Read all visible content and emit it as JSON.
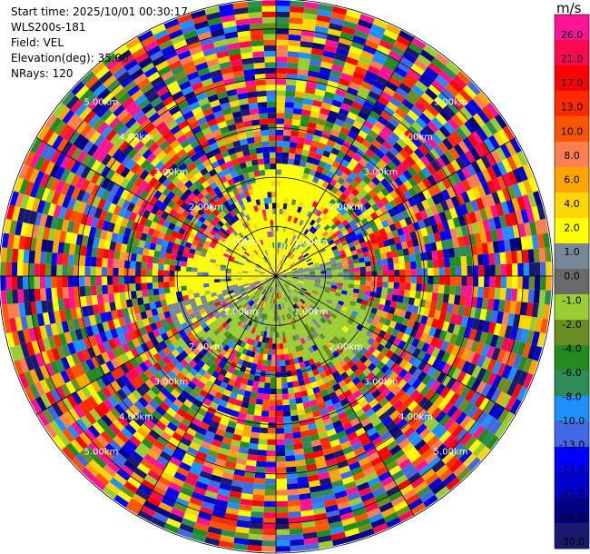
{
  "header": {
    "start_time_label": "Start time:",
    "start_time": "2025/10/01 00:30:17",
    "instrument": "WLS200s-181",
    "field_label": "Field:",
    "field": "VEL",
    "elevation_label": "Elevation(deg):",
    "elevation": "35.00",
    "nrays_label": "NRays:",
    "nrays": "120"
  },
  "colorbar": {
    "unit": "m/s",
    "ticks": [
      "26.0",
      "21.0",
      "17.0",
      "13.0",
      "10.0",
      "8.0",
      "6.0",
      "4.0",
      "2.0",
      "1.0",
      "0.0",
      "-1.0",
      "-2.0",
      "-4.0",
      "-6.0",
      "-8.0",
      "-10.0",
      "-13.0",
      "-17.0",
      "-21.0",
      "-26.0",
      "-30.0"
    ],
    "colors": [
      "#ff1493",
      "#ff0a50",
      "#ff0000",
      "#ff2a00",
      "#ff5500",
      "#ff7f50",
      "#ffa500",
      "#ffd700",
      "#ffff00",
      "#778899",
      "#696969",
      "#9acd32",
      "#6b8e23",
      "#228b22",
      "#2e8b57",
      "#1e90ff",
      "#4169e1",
      "#0000ff",
      "#0000cd",
      "#000080",
      "#191970"
    ]
  },
  "chart_data": {
    "type": "ppi-scan",
    "field": "VEL",
    "units": "m/s",
    "elevation_deg": 35.0,
    "nrays": 120,
    "range_rings_km": [
      1.0,
      2.0,
      3.0,
      4.0,
      5.0
    ],
    "ring_labels": [
      "1.00km",
      "2.00km",
      "3.00km",
      "4.00km",
      "5.00km"
    ],
    "max_range_km": 5.6,
    "spoke_azimuths_deg": [
      0,
      30,
      60,
      90,
      120,
      150,
      180,
      210,
      240,
      270,
      300,
      330
    ],
    "label_azimuths_deg": [
      45,
      135,
      225,
      315
    ],
    "near_field": {
      "positive_sector": "north-west",
      "positive_color": "#ffff00",
      "negative_sector": "south-east",
      "negative_color": "#9acd32",
      "extent_km": 2.1
    }
  }
}
